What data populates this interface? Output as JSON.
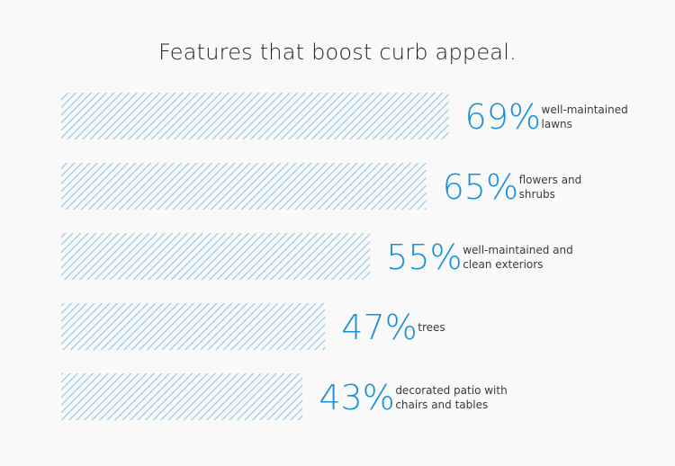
{
  "title": "Features that boost curb appeal.",
  "colors": {
    "accent": "#1a8fd6",
    "hatch": "#8fc4ea",
    "label": "#3a3a3a",
    "title": "#1f1f1f",
    "background": "#f9f9f9"
  },
  "chart_data": {
    "type": "bar",
    "orientation": "horizontal",
    "title": "Features that boost curb appeal.",
    "categories": [
      [
        "well-maintained",
        "lawns"
      ],
      [
        "flowers and",
        "shrubs"
      ],
      [
        "well-maintained and",
        "clean exteriors"
      ],
      [
        "trees"
      ],
      [
        "decorated patio with",
        "chairs and tables"
      ]
    ],
    "values": [
      69,
      65,
      55,
      47,
      43
    ],
    "value_labels": [
      "69%",
      "65%",
      "55%",
      "47%",
      "43%"
    ],
    "unit": "%",
    "xlim": [
      0,
      100
    ],
    "grid": false,
    "legend": "none"
  }
}
